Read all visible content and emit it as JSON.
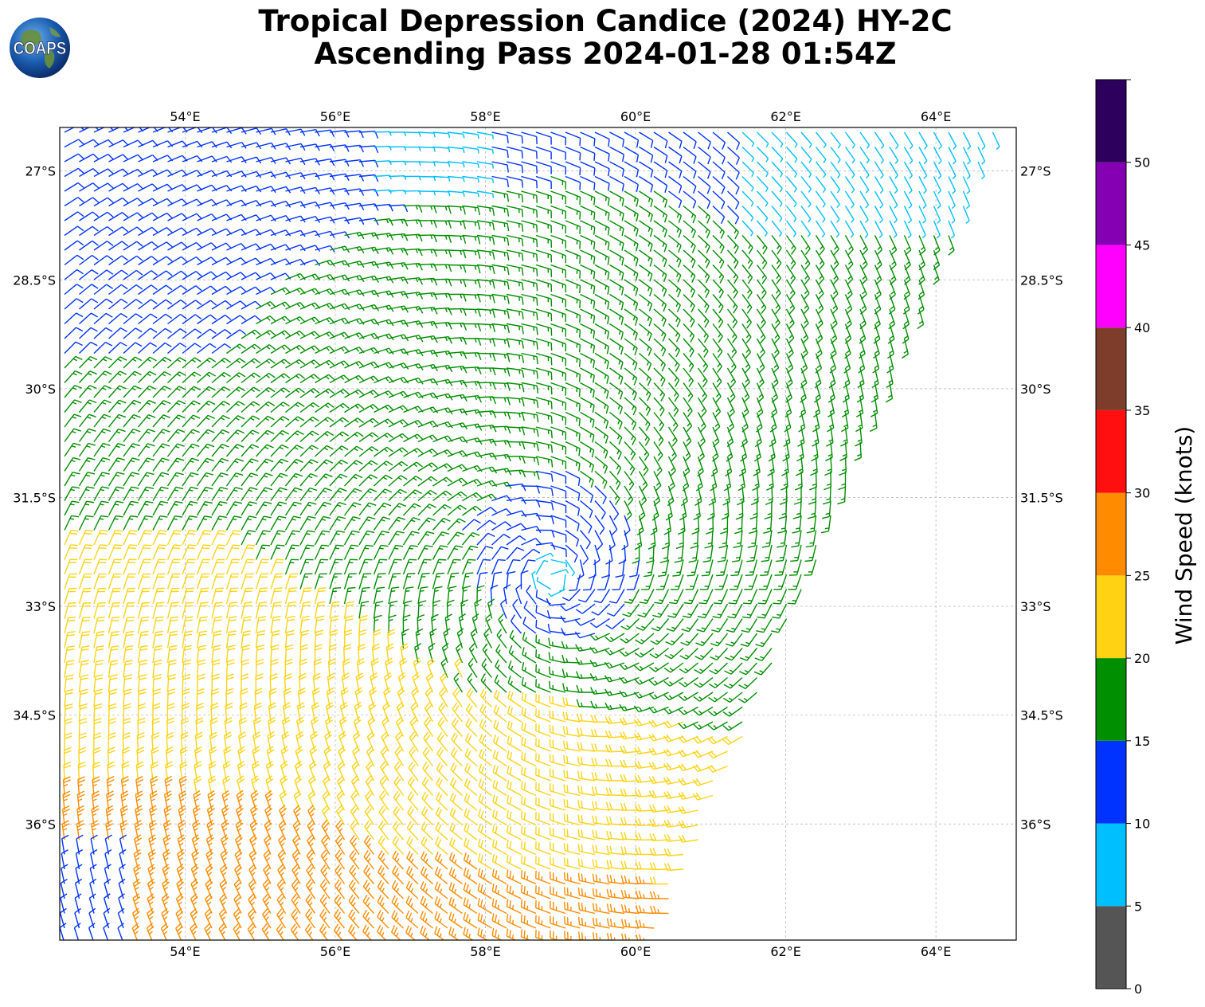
{
  "header": {
    "title_line1": "Tropical Depression Candice (2024) HY-2C",
    "title_line2": "Ascending Pass 2024-01-28 01:54Z"
  },
  "logo": {
    "text": "COAPS",
    "icon": "globe-logo-icon"
  },
  "map_data": {
    "type": "wind-barbs",
    "lon_range": [
      52.33,
      65.07
    ],
    "lat_range": [
      -37.6,
      -26.4
    ],
    "lon_ticks": [
      "54°E",
      "56°E",
      "58°E",
      "60°E",
      "62°E",
      "64°E"
    ],
    "lon_tick_values": [
      54,
      56,
      58,
      60,
      62,
      64
    ],
    "lat_ticks": [
      "27°S",
      "28.5°S",
      "30°S",
      "31.5°S",
      "33°S",
      "34.5°S",
      "36°S"
    ],
    "lat_tick_values": [
      -27,
      -28.5,
      -30,
      -31.5,
      -33,
      -34.5,
      -36
    ],
    "grid": true,
    "cyclone_center": {
      "lon": 58.9,
      "lat": -32.6
    },
    "swath_edge": [
      [
        64.8,
        -26.4
      ],
      [
        60.3,
        -37.6
      ]
    ],
    "band_colors": {
      "0-5": "#555555",
      "5-10": "#00bfff",
      "10-15": "#0033ff",
      "15-20": "#008f00",
      "20-25": "#ffd314",
      "25-30": "#ff8c00",
      "30-35": "#ff0f0f",
      "35-40": "#7d3d2a",
      "40-45": "#ff00ff",
      "45-50": "#8500b3",
      "50-55": "#2c005c"
    }
  },
  "colorbar": {
    "label": "Wind Speed (knots)",
    "ticks": [
      "0",
      "5",
      "10",
      "15",
      "20",
      "25",
      "30",
      "35",
      "40",
      "45",
      "50"
    ],
    "tick_values": [
      0,
      5,
      10,
      15,
      20,
      25,
      30,
      35,
      40,
      45,
      50
    ],
    "range": [
      0,
      55
    ],
    "colors": [
      "#555555",
      "#00bfff",
      "#0033ff",
      "#008f00",
      "#ffd314",
      "#ff8c00",
      "#ff0f0f",
      "#7d3d2a",
      "#ff00ff",
      "#8500b3",
      "#2c005c"
    ]
  }
}
